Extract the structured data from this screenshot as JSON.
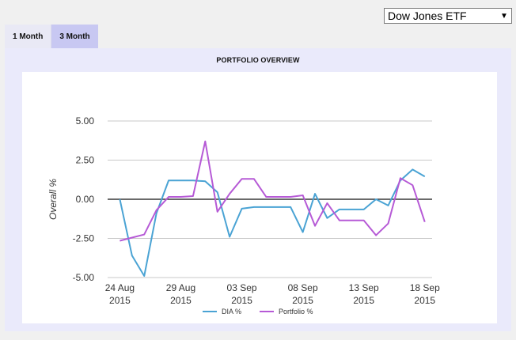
{
  "selector": {
    "value": "Dow Jones ETF",
    "arrow": "▼"
  },
  "tabs": [
    {
      "label": "1 Month",
      "active": false
    },
    {
      "label": "3 Month",
      "active": true
    }
  ],
  "panel": {
    "title": "PORTFOLIO OVERVIEW"
  },
  "chart_data": {
    "type": "line",
    "title": "PORTFOLIO OVERVIEW",
    "xlabel": "",
    "ylabel": "Overall %",
    "ylim": [
      -5.0,
      5.0
    ],
    "yticks": [
      "5.00",
      "2.50",
      "0.00",
      "-2.50",
      "-5.00"
    ],
    "x_ticks": [
      {
        "line1": "24 Aug",
        "line2": "2015",
        "x": 0
      },
      {
        "line1": "29 Aug",
        "line2": "2015",
        "x": 5
      },
      {
        "line1": "03 Sep",
        "line2": "2015",
        "x": 10
      },
      {
        "line1": "08 Sep",
        "line2": "2015",
        "x": 15
      },
      {
        "line1": "13 Sep",
        "line2": "2015",
        "x": 20
      },
      {
        "line1": "18 Sep",
        "line2": "2015",
        "x": 25
      }
    ],
    "x_range": [
      -1,
      25.6
    ],
    "series": [
      {
        "name": "DIA %",
        "color": "#4aa3d4",
        "points": [
          [
            0.0,
            0.0
          ],
          [
            1.0,
            -3.6
          ],
          [
            2.0,
            -4.9
          ],
          [
            3.0,
            -0.9
          ],
          [
            4.0,
            1.2
          ],
          [
            5.0,
            1.2
          ],
          [
            6.0,
            1.2
          ],
          [
            7.0,
            1.15
          ],
          [
            8.0,
            0.45
          ],
          [
            9.0,
            -2.4
          ],
          [
            10.0,
            -0.6
          ],
          [
            11.0,
            -0.5
          ],
          [
            12.0,
            -0.5
          ],
          [
            13.0,
            -0.5
          ],
          [
            14.0,
            -0.5
          ],
          [
            15.0,
            -2.1
          ],
          [
            16.0,
            0.35
          ],
          [
            17.0,
            -1.2
          ],
          [
            18.0,
            -0.65
          ],
          [
            19.0,
            -0.65
          ],
          [
            20.0,
            -0.65
          ],
          [
            21.0,
            0.0
          ],
          [
            22.0,
            -0.4
          ],
          [
            23.0,
            1.2
          ],
          [
            24.0,
            1.9
          ],
          [
            25.0,
            1.45
          ]
        ]
      },
      {
        "name": "Portfolio %",
        "color": "#b65ad6",
        "points": [
          [
            0.0,
            -2.65
          ],
          [
            1.0,
            -2.45
          ],
          [
            2.0,
            -2.25
          ],
          [
            3.0,
            -0.7
          ],
          [
            4.0,
            0.15
          ],
          [
            5.0,
            0.15
          ],
          [
            6.0,
            0.2
          ],
          [
            7.0,
            3.7
          ],
          [
            8.0,
            -0.8
          ],
          [
            9.0,
            0.35
          ],
          [
            10.0,
            1.3
          ],
          [
            11.0,
            1.3
          ],
          [
            12.0,
            0.15
          ],
          [
            13.0,
            0.15
          ],
          [
            14.0,
            0.15
          ],
          [
            15.0,
            0.25
          ],
          [
            16.0,
            -1.7
          ],
          [
            17.0,
            -0.25
          ],
          [
            18.0,
            -1.35
          ],
          [
            19.0,
            -1.35
          ],
          [
            20.0,
            -1.35
          ],
          [
            21.0,
            -2.3
          ],
          [
            22.0,
            -1.55
          ],
          [
            23.0,
            1.35
          ],
          [
            24.0,
            0.9
          ],
          [
            25.0,
            -1.45
          ]
        ]
      }
    ],
    "legend": {
      "placement": "bottom"
    },
    "zero_line": true
  }
}
